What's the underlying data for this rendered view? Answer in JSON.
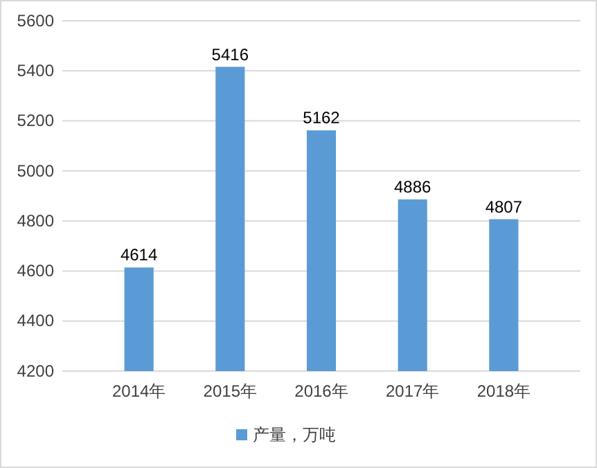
{
  "chart_data": {
    "type": "bar",
    "categories": [
      "2014年",
      "2015年",
      "2016年",
      "2017年",
      "2018年"
    ],
    "series": [
      {
        "name": "产量，万吨",
        "color": "#5b9bd5",
        "values": [
          4614,
          5416,
          5162,
          4886,
          4807
        ]
      }
    ],
    "ylim": [
      4200,
      5600
    ],
    "yticks": [
      4200,
      4400,
      4600,
      4800,
      5000,
      5200,
      5400,
      5600
    ],
    "grid": "y",
    "legend": "bottom",
    "data_labels": true
  }
}
